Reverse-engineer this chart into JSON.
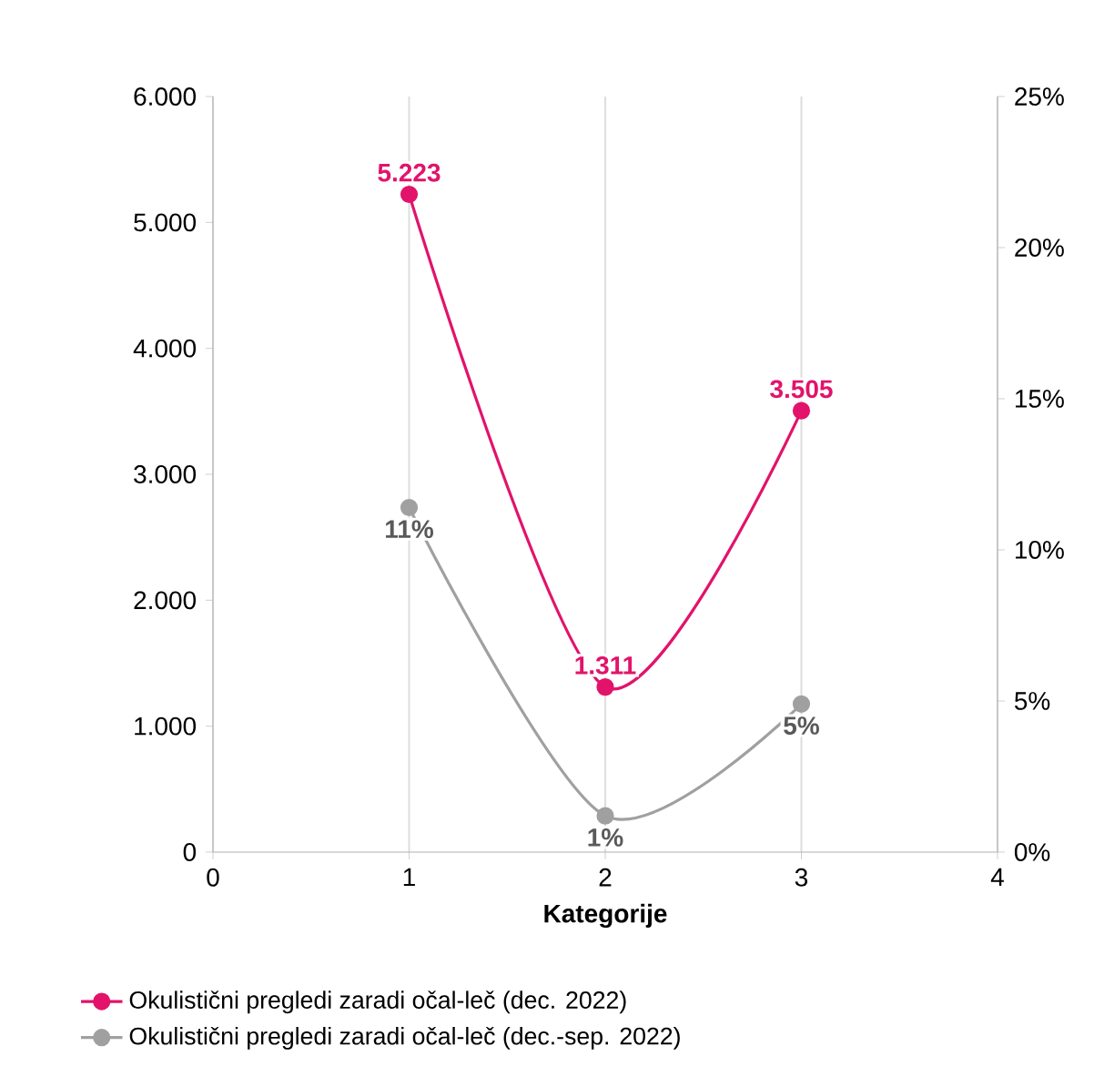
{
  "chart_data": {
    "type": "line",
    "xlabel": "Kategorije",
    "x": [
      1,
      2,
      3
    ],
    "xlim": [
      0,
      4
    ],
    "xticks": [
      0,
      1,
      2,
      3,
      4
    ],
    "ylim": [
      0,
      6000
    ],
    "yticks": [
      0,
      {
        "value": 1000,
        "label": "1.000"
      },
      {
        "value": 2000,
        "label": "2.000"
      },
      {
        "value": 3000,
        "label": "3.000"
      },
      {
        "value": 4000,
        "label": "4.000"
      },
      {
        "value": 5000,
        "label": "5.000"
      },
      {
        "value": 6000,
        "label": "6.000"
      }
    ],
    "y2lim": [
      0,
      25
    ],
    "y2ticks": [
      {
        "value": 0,
        "label": "0%"
      },
      {
        "value": 5,
        "label": "5%"
      },
      {
        "value": 10,
        "label": "10%"
      },
      {
        "value": 15,
        "label": "15%"
      },
      {
        "value": 20,
        "label": "20%"
      },
      {
        "value": 25,
        "label": "25%"
      }
    ],
    "grid": "x",
    "legend": "bottom",
    "marker": "circle",
    "line_style": "solid",
    "series": [
      {
        "name": "Okulistični pregledi zaradi očal-leč (dec. 2022)",
        "color": "#e2136b",
        "values": [
          5223,
          1311,
          3505
        ],
        "value_labels": [
          "5.223",
          "1.311",
          "3.505"
        ]
      },
      {
        "name": "Okulistični pregledi zaradi očal-leč (dec.-sep. 2022)",
        "color": "#a0a0a0",
        "axis": "y2",
        "values": [
          11.4,
          1.2,
          4.9
        ],
        "value_labels": [
          "11%",
          "1%",
          "5%"
        ]
      }
    ]
  }
}
